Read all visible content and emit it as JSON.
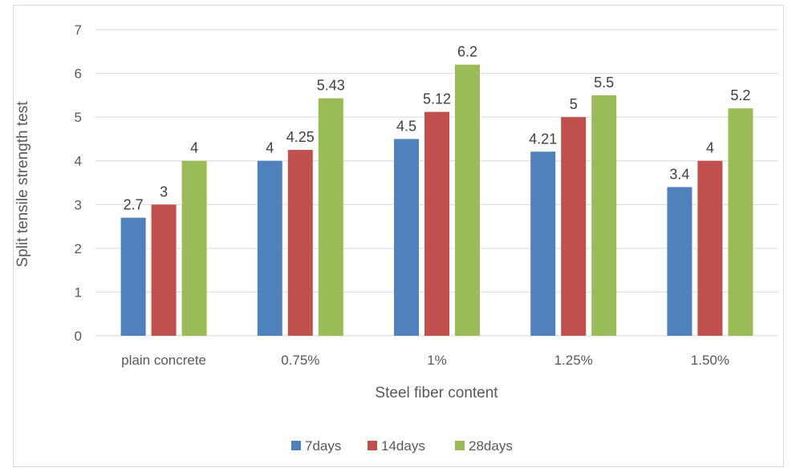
{
  "chart_data": {
    "type": "bar",
    "title": "",
    "xlabel": "Steel fiber content",
    "ylabel": "Split tensile strength test",
    "categories": [
      "plain concrete",
      "0.75%",
      "1%",
      "1.25%",
      "1.50%"
    ],
    "series": [
      {
        "name": "7days",
        "color": "#4f81bd",
        "values": [
          2.7,
          4,
          4.5,
          4.21,
          3.4
        ],
        "labels": [
          "2.7",
          "4",
          "4.5",
          "4.21",
          "3.4"
        ]
      },
      {
        "name": "14days",
        "color": "#c0504d",
        "values": [
          3,
          4.25,
          5.12,
          5,
          4
        ],
        "labels": [
          "3",
          "4.25",
          "5.12",
          "5",
          "4"
        ]
      },
      {
        "name": "28days",
        "color": "#9bbb59",
        "values": [
          4,
          5.43,
          6.2,
          5.5,
          5.2
        ],
        "labels": [
          "4",
          "5.43",
          "6.2",
          "5.5",
          "5.2"
        ]
      }
    ],
    "ylim": [
      0,
      7
    ],
    "yticks": [
      "0",
      "1",
      "2",
      "3",
      "4",
      "5",
      "6",
      "7"
    ],
    "grid": true,
    "legend_position": "bottom"
  }
}
